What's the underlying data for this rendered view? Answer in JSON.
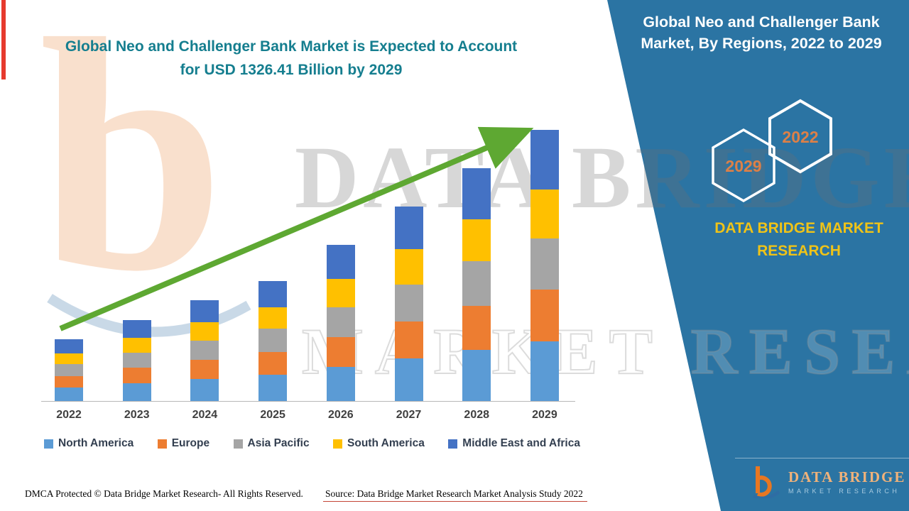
{
  "header": {
    "title_line1": "Global Neo and Challenger Bank Market is Expected to Account",
    "title_line2": "for USD 1326.41 Billion by 2029",
    "title_color": "#157e8f"
  },
  "side_panel": {
    "heading": "Global Neo and Challenger Bank Market, By Regions, 2022 to 2029",
    "panel_color": "#2b74a3",
    "badges": {
      "back": "2029",
      "front": "2022",
      "text_color": "#dd8047"
    },
    "brand_text": "DATA BRIDGE MARKET RESEARCH",
    "brand_color": "#efc318",
    "logo": {
      "name_line": "DATA BRIDGE",
      "sub_line": "MARKET RESEARCH"
    }
  },
  "watermark": {
    "big_text": "DATA BRIDGE",
    "outline_text": "MARKET RESEARCH",
    "logo_letter": "b"
  },
  "chart_data": {
    "type": "bar",
    "stacked": true,
    "title": "Global Neo and Challenger Bank Market is Expected to Account for USD 1326.41 Billion by 2029",
    "units": "USD Billion",
    "categories": [
      "2022",
      "2023",
      "2024",
      "2025",
      "2026",
      "2027",
      "2028",
      "2029"
    ],
    "series": [
      {
        "name": "North America",
        "color": "#5b9bd5",
        "values": [
          66,
          87,
          108,
          129,
          168,
          209,
          251,
          292
        ]
      },
      {
        "name": "Europe",
        "color": "#ed7d31",
        "values": [
          57,
          75,
          94,
          112,
          145,
          181,
          216,
          252
        ]
      },
      {
        "name": "Asia Pacific",
        "color": "#a5a5a5",
        "values": [
          57,
          75,
          94,
          112,
          145,
          181,
          216,
          252
        ]
      },
      {
        "name": "South America",
        "color": "#ffc000",
        "values": [
          54,
          71,
          89,
          106,
          138,
          171,
          205,
          239
        ]
      },
      {
        "name": "Middle East and Africa",
        "color": "#4472c4",
        "values": [
          68,
          88,
          108,
          128,
          168,
          209,
          251,
          291.41
        ]
      }
    ],
    "totals": [
      302,
      396,
      493,
      587,
      764,
      951,
      1139,
      1326.41
    ],
    "ylim": [
      0,
      1400
    ],
    "legend_position": "bottom",
    "gridlines": false,
    "trend_arrow": true,
    "trend_arrow_color": "#5ea832"
  },
  "footer": {
    "left_text": "DMCA Protected © Data Bridge Market Research- All Rights Reserved.",
    "source_text": "Source: Data Bridge Market Research Market Analysis Study 2022"
  }
}
